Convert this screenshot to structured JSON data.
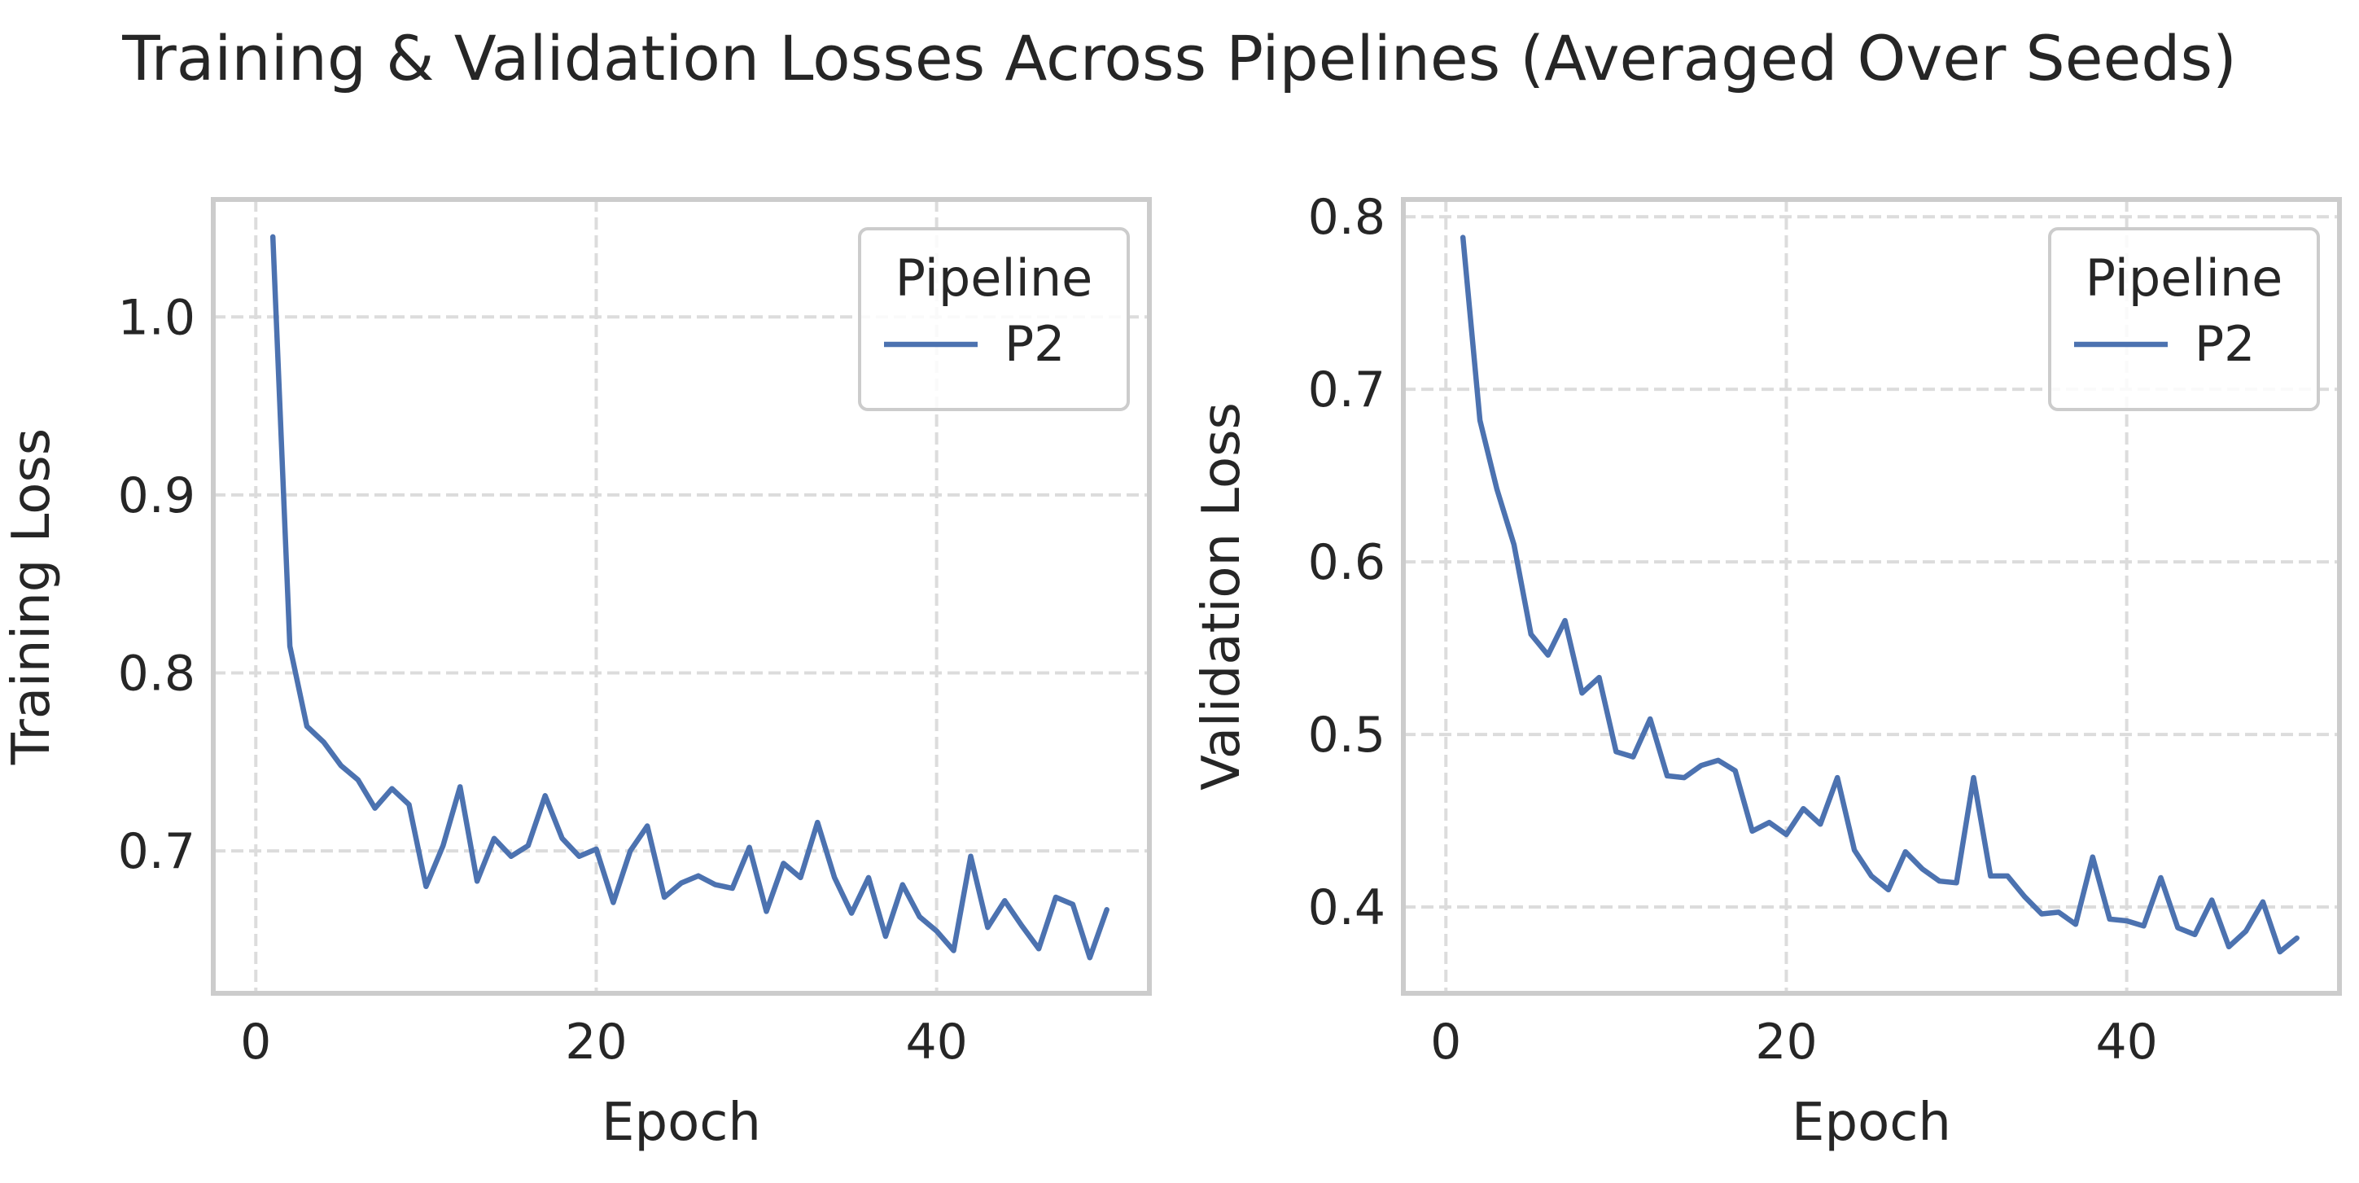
{
  "figure": {
    "title": "Training & Validation Losses Across Pipelines (Averaged Over Seeds)"
  },
  "chart_data": [
    {
      "type": "line",
      "xlabel": "Epoch",
      "ylabel": "Training Loss",
      "xlim": [
        -2.5,
        52.5
      ],
      "ylim": [
        0.62,
        1.066
      ],
      "xticks": [
        0,
        20,
        40
      ],
      "yticks": [
        0.7,
        0.8,
        0.9,
        1.0
      ],
      "ytick_labels": [
        "0.7",
        "0.8",
        "0.9",
        "1.0"
      ],
      "grid": true,
      "legend": {
        "title": "Pipeline",
        "position": "top-right"
      },
      "series": [
        {
          "name": "P2",
          "color": "#4c72b0",
          "x": [
            1,
            2,
            3,
            4,
            5,
            6,
            7,
            8,
            9,
            10,
            11,
            12,
            13,
            14,
            15,
            16,
            17,
            18,
            19,
            20,
            21,
            22,
            23,
            24,
            25,
            26,
            27,
            28,
            29,
            30,
            31,
            32,
            33,
            34,
            35,
            36,
            37,
            38,
            39,
            40,
            41,
            42,
            43,
            44,
            45,
            46,
            47,
            48,
            49,
            50
          ],
          "y": [
            1.045,
            0.815,
            0.77,
            0.761,
            0.748,
            0.74,
            0.724,
            0.735,
            0.726,
            0.68,
            0.703,
            0.736,
            0.683,
            0.707,
            0.697,
            0.703,
            0.731,
            0.707,
            0.697,
            0.701,
            0.671,
            0.7,
            0.714,
            0.674,
            0.682,
            0.686,
            0.681,
            0.679,
            0.702,
            0.666,
            0.693,
            0.685,
            0.716,
            0.685,
            0.665,
            0.685,
            0.652,
            0.681,
            0.663,
            0.655,
            0.644,
            0.697,
            0.657,
            0.672,
            0.658,
            0.645,
            0.674,
            0.67,
            0.64,
            0.667
          ]
        }
      ]
    },
    {
      "type": "line",
      "xlabel": "Epoch",
      "ylabel": "Validation Loss",
      "xlim": [
        -2.5,
        52.5
      ],
      "ylim": [
        0.35,
        0.81
      ],
      "xticks": [
        0,
        20,
        40
      ],
      "yticks": [
        0.4,
        0.5,
        0.6,
        0.7,
        0.8
      ],
      "ytick_labels": [
        "0.4",
        "0.5",
        "0.6",
        "0.7",
        "0.8"
      ],
      "grid": true,
      "legend": {
        "title": "Pipeline",
        "position": "top-right"
      },
      "series": [
        {
          "name": "P2",
          "color": "#4c72b0",
          "x": [
            1,
            2,
            3,
            4,
            5,
            6,
            7,
            8,
            9,
            10,
            11,
            12,
            13,
            14,
            15,
            16,
            17,
            18,
            19,
            20,
            21,
            22,
            23,
            24,
            25,
            26,
            27,
            28,
            29,
            30,
            31,
            32,
            33,
            34,
            35,
            36,
            37,
            38,
            39,
            40,
            41,
            42,
            43,
            44,
            45,
            46,
            47,
            48,
            49,
            50
          ],
          "y": [
            0.788,
            0.682,
            0.642,
            0.61,
            0.558,
            0.546,
            0.566,
            0.524,
            0.533,
            0.49,
            0.487,
            0.509,
            0.476,
            0.475,
            0.482,
            0.485,
            0.479,
            0.444,
            0.449,
            0.442,
            0.457,
            0.448,
            0.475,
            0.433,
            0.418,
            0.41,
            0.432,
            0.422,
            0.415,
            0.414,
            0.475,
            0.418,
            0.418,
            0.406,
            0.396,
            0.397,
            0.39,
            0.429,
            0.393,
            0.392,
            0.389,
            0.417,
            0.388,
            0.384,
            0.404,
            0.377,
            0.386,
            0.403,
            0.374,
            0.382
          ]
        }
      ]
    }
  ]
}
